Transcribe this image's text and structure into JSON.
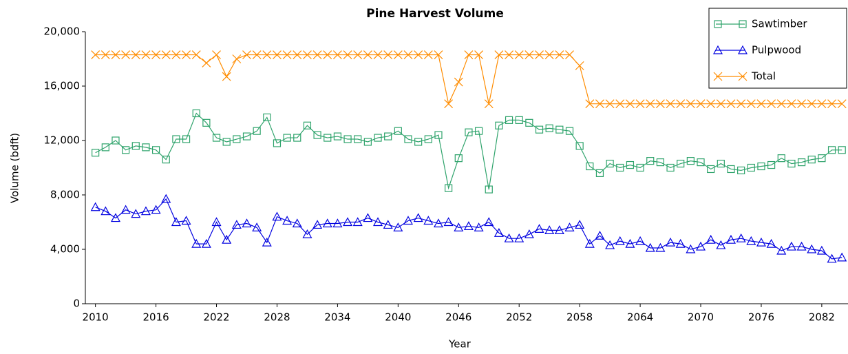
{
  "chart_data": {
    "type": "line",
    "title": "Pine Harvest Volume",
    "x_label": "Year",
    "y_label": "Volume (bdft)",
    "x": [
      2010,
      2011,
      2012,
      2013,
      2014,
      2015,
      2016,
      2017,
      2018,
      2019,
      2020,
      2021,
      2022,
      2023,
      2024,
      2025,
      2026,
      2027,
      2028,
      2029,
      2030,
      2031,
      2032,
      2033,
      2034,
      2035,
      2036,
      2037,
      2038,
      2039,
      2040,
      2041,
      2042,
      2043,
      2044,
      2045,
      2046,
      2047,
      2048,
      2049,
      2050,
      2051,
      2052,
      2053,
      2054,
      2055,
      2056,
      2057,
      2058,
      2059,
      2060,
      2061,
      2062,
      2063,
      2064,
      2065,
      2066,
      2067,
      2068,
      2069,
      2070,
      2071,
      2072,
      2073,
      2074,
      2075,
      2076,
      2077,
      2078,
      2079,
      2080,
      2081,
      2082,
      2083,
      2084
    ],
    "series": [
      {
        "name": "Sawtimber",
        "color": "#2ea36b",
        "marker": "square",
        "values": [
          11100,
          11500,
          12000,
          11300,
          11600,
          11500,
          11300,
          10600,
          12100,
          12100,
          14000,
          13300,
          12200,
          11900,
          12100,
          12300,
          12700,
          13700,
          11800,
          12200,
          12200,
          13100,
          12400,
          12200,
          12300,
          12100,
          12100,
          11900,
          12200,
          12300,
          12700,
          12100,
          11900,
          12100,
          12400,
          8500,
          10700,
          12600,
          12700,
          8400,
          13100,
          13500,
          13500,
          13300,
          12800,
          12900,
          12800,
          12700,
          11600,
          10100,
          9600,
          10300,
          10000,
          10200,
          10000,
          10500,
          10400,
          10000,
          10300,
          10500,
          10400,
          9900,
          10300,
          9900,
          9800,
          10000,
          10100,
          10200,
          10700,
          10300,
          10400,
          10600,
          10700,
          11300,
          11300
        ]
      },
      {
        "name": "Pulpwood",
        "color": "#0000e0",
        "marker": "triangle",
        "values": [
          7100,
          6800,
          6300,
          6900,
          6600,
          6800,
          6900,
          7700,
          6000,
          6100,
          4400,
          4400,
          6000,
          4700,
          5800,
          5900,
          5600,
          4500,
          6400,
          6100,
          5900,
          5100,
          5800,
          5900,
          5900,
          6000,
          6000,
          6300,
          6000,
          5800,
          5600,
          6100,
          6300,
          6100,
          5900,
          6000,
          5600,
          5700,
          5600,
          6000,
          5200,
          4800,
          4800,
          5100,
          5500,
          5400,
          5400,
          5600,
          5800,
          4400,
          5000,
          4300,
          4600,
          4400,
          4600,
          4100,
          4100,
          4500,
          4400,
          4000,
          4200,
          4700,
          4300,
          4700,
          4800,
          4600,
          4500,
          4400,
          3900,
          4200,
          4200,
          4000,
          3900,
          3300,
          3400
        ]
      },
      {
        "name": "Total",
        "color": "#ff8c00",
        "marker": "x",
        "values": [
          18300,
          18300,
          18300,
          18300,
          18300,
          18300,
          18300,
          18300,
          18300,
          18300,
          18300,
          17700,
          18300,
          16700,
          18000,
          18300,
          18300,
          18300,
          18300,
          18300,
          18300,
          18300,
          18300,
          18300,
          18300,
          18300,
          18300,
          18300,
          18300,
          18300,
          18300,
          18300,
          18300,
          18300,
          18300,
          14700,
          16300,
          18300,
          18300,
          14700,
          18300,
          18300,
          18300,
          18300,
          18300,
          18300,
          18300,
          18300,
          17500,
          14700,
          14700,
          14700,
          14700,
          14700,
          14700,
          14700,
          14700,
          14700,
          14700,
          14700,
          14700,
          14700,
          14700,
          14700,
          14700,
          14700,
          14700,
          14700,
          14700,
          14700,
          14700,
          14700,
          14700,
          14700,
          14700
        ]
      }
    ],
    "xlim": [
      2009,
      2084.6
    ],
    "xticks": [
      2010,
      2016,
      2022,
      2028,
      2034,
      2040,
      2046,
      2052,
      2058,
      2064,
      2070,
      2076,
      2082
    ],
    "ylim": [
      0,
      20000
    ],
    "yticks": [
      0,
      {
        "value": 4000,
        "label": "4,000"
      },
      {
        "value": 8000,
        "label": "8,000"
      },
      {
        "value": 12000,
        "label": "12,000"
      },
      {
        "value": 16000,
        "label": "16,000"
      },
      {
        "value": 20000,
        "label": "20,000"
      }
    ],
    "legend": "top-right",
    "grid": false
  }
}
